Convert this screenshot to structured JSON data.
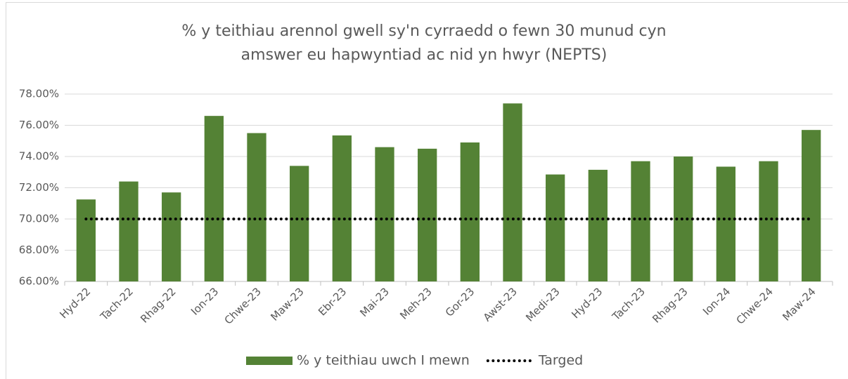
{
  "chart_data": {
    "type": "bar",
    "title": "% y teithiau arennol gwell sy'n cyrraedd o fewn 30 munud cyn amswer eu hapwyntiad ac nid yn hwyr (NEPTS)",
    "categories": [
      "Hyd-22",
      "Tach-22",
      "Rhag-22",
      "Ion-23",
      "Chwe-23",
      "Maw-23",
      "Ebr-23",
      "Mai-23",
      "Meh-23",
      "Gor-23",
      "Awst-23",
      "Medi-23",
      "Hyd-23",
      "Tach-23",
      "Rhag-23",
      "Ion-24",
      "Chwe-24",
      "Maw-24"
    ],
    "series": [
      {
        "name": "% y teithiau uwch I mewn",
        "type": "bar",
        "color": "#548235",
        "values": [
          71.25,
          72.4,
          71.7,
          76.6,
          75.5,
          73.4,
          75.35,
          74.6,
          74.5,
          74.9,
          77.4,
          72.85,
          73.15,
          73.7,
          74.0,
          73.35,
          73.7,
          75.7
        ]
      },
      {
        "name": "Targed",
        "type": "line",
        "color": "#000000",
        "values": [
          70,
          70,
          70,
          70,
          70,
          70,
          70,
          70,
          70,
          70,
          70,
          70,
          70,
          70,
          70,
          70,
          70,
          70
        ]
      }
    ],
    "ylim": [
      66,
      78
    ],
    "yticks": [
      {
        "value": 66,
        "label": "66.00%"
      },
      {
        "value": 68,
        "label": "68.00%"
      },
      {
        "value": 70,
        "label": "70.00%"
      },
      {
        "value": 72,
        "label": "72.00%"
      },
      {
        "value": 74,
        "label": "74.00%"
      },
      {
        "value": 76,
        "label": "76.00%"
      },
      {
        "value": 78,
        "label": "78.00%"
      }
    ],
    "grid": true,
    "legend": "bottom"
  }
}
